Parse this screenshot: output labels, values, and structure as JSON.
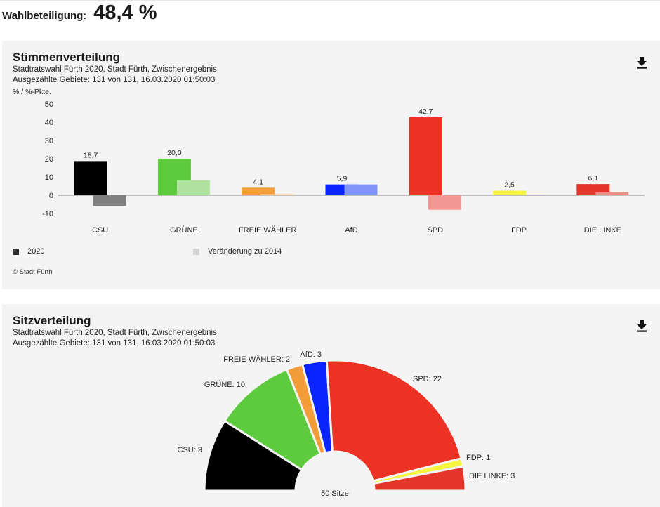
{
  "turnout": {
    "label": "Wahlbeteiligung:",
    "value": "48,4 %"
  },
  "votes_panel": {
    "title": "Stimmenverteilung",
    "subtitle": "Stadtratswahl Fürth 2020, Stadt Fürth, Zwischenergebnis",
    "counted": "Ausgezählte Gebiete: 131 von 131, 16.03.2020 01:50:03",
    "unit": "% / %-Pkte.",
    "download_icon": "download-icon",
    "legend": [
      {
        "label": "2020",
        "color": "#333333"
      },
      {
        "label": "Veränderung zu 2014",
        "color": "#d3d3d3"
      }
    ],
    "copyright": "© Stadt Fürth"
  },
  "seats_panel": {
    "title": "Sitzverteilung",
    "subtitle": "Stadtratswahl Fürth 2020, Stadt Fürth, Zwischenergebnis",
    "counted": "Ausgezählte Gebiete: 131 von 131, 16.03.2020 01:50:03",
    "download_icon": "download-icon",
    "total_label": "50 Sitze"
  },
  "chart_data": [
    {
      "type": "bar",
      "categories": [
        "CSU",
        "GRÜNE",
        "FREIE WÄHLER",
        "AfD",
        "SPD",
        "FDP",
        "DIE LINKE"
      ],
      "series": [
        {
          "name": "2020",
          "values": [
            18.7,
            20.0,
            4.1,
            5.9,
            42.7,
            2.5,
            6.1
          ],
          "labels": [
            "18,7",
            "20,0",
            "4,1",
            "5,9",
            "42,7",
            "2,5",
            "6,1"
          ]
        },
        {
          "name": "Veränderung zu 2014",
          "values": [
            -5.9,
            8.2,
            0.6,
            5.9,
            -8.0,
            0.0,
            1.8
          ]
        }
      ],
      "colors": [
        "#000000",
        "#5dcb3d",
        "#f29d3a",
        "#0a24ff",
        "#ec3224",
        "#f6f43e",
        "#e5352b"
      ],
      "change_colors": [
        "#808080",
        "#aee29e",
        "#f8cd9b",
        "#8194fa",
        "#f29791",
        "#fbfaa0",
        "#ee8f87"
      ],
      "yticks": [
        50,
        40,
        30,
        20,
        10,
        0,
        -10
      ],
      "ylim": [
        -10,
        50
      ]
    },
    {
      "type": "pie",
      "subtype": "semicircle",
      "total": 50,
      "categories": [
        "CSU",
        "GRÜNE",
        "FREIE WÄHLER",
        "AfD",
        "SPD",
        "FDP",
        "DIE LINKE"
      ],
      "values": [
        9,
        10,
        2,
        3,
        22,
        1,
        3
      ],
      "labels": [
        "CSU: 9",
        "GRÜNE: 10",
        "FREIE WÄHLER: 2",
        "AfD: 3",
        "SPD: 22",
        "FDP: 1",
        "DIE LINKE: 3"
      ],
      "colors": [
        "#000000",
        "#5dcb3d",
        "#f29d3a",
        "#0a24ff",
        "#ec3224",
        "#f6f43e",
        "#e5352b"
      ]
    }
  ]
}
